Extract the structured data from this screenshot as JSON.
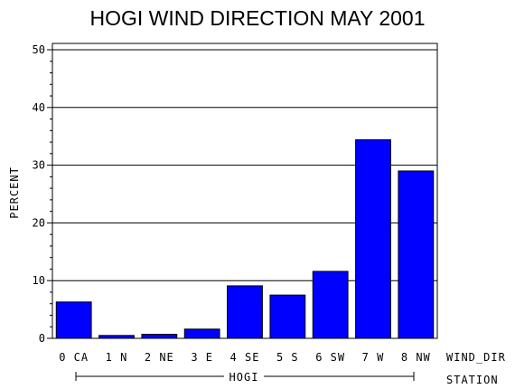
{
  "chart_data": {
    "type": "bar",
    "title": "HOGI WIND DIRECTION MAY 2001",
    "ylabel": "PERCENT",
    "xlabel": "WIND_DIR",
    "group_axis_label": "STATION",
    "group_label": "HOGI",
    "categories": [
      "0 CA",
      "1 N",
      "2 NE",
      "3 E",
      "4 SE",
      "5 S",
      "6 SW",
      "7 W",
      "8 NW"
    ],
    "values": [
      6.3,
      0.5,
      0.7,
      1.6,
      9.1,
      7.5,
      11.6,
      34.4,
      29.0
    ],
    "ylim": [
      0,
      50
    ],
    "yticks": [
      "0",
      "10",
      "20",
      "30",
      "40",
      "50"
    ],
    "grid": true,
    "bar_color": "#0000ff"
  }
}
